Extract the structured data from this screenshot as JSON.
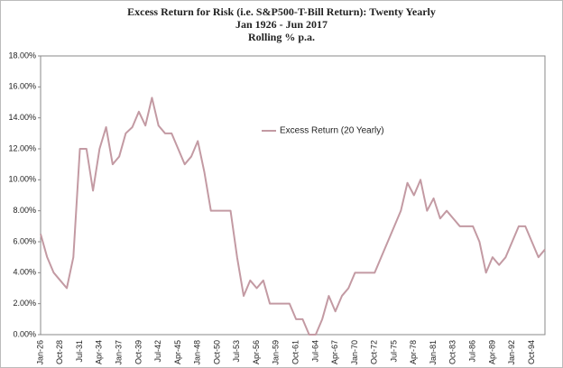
{
  "chart_data": {
    "type": "line",
    "title": [
      "Excess Return for Risk (i.e. S&P500-T-Bill Return): Twenty Yearly",
      "Jan 1926 - Jun 2017",
      "Rolling % p.a."
    ],
    "categories": [
      "Jan-26",
      null,
      null,
      "Oct-28",
      null,
      null,
      "Jul-31",
      null,
      null,
      "Apr-34",
      null,
      null,
      "Jan-37",
      null,
      null,
      "Oct-39",
      null,
      null,
      "Jul-42",
      null,
      null,
      "Apr-45",
      null,
      null,
      "Jan-48",
      null,
      null,
      "Oct-50",
      null,
      null,
      "Jul-53",
      null,
      null,
      "Apr-56",
      null,
      null,
      "Jan-59",
      null,
      null,
      "Oct-61",
      null,
      null,
      "Jul-64",
      null,
      null,
      "Apr-67",
      null,
      null,
      "Jan-70",
      null,
      null,
      "Oct-72",
      null,
      null,
      "Jul-75",
      null,
      null,
      "Apr-78",
      null,
      null,
      "Jan-81",
      null,
      null,
      "Oct-83",
      null,
      null,
      "Jul-86",
      null,
      null,
      "Apr-89",
      null,
      null,
      "Jan-92",
      null,
      null,
      "Oct-94",
      null,
      null
    ],
    "series": [
      {
        "name": "Excess Return (20 Yearly)",
        "color": "#c39aa3",
        "values": [
          6.5,
          5,
          4,
          3.5,
          3,
          5,
          12,
          12,
          9.3,
          12,
          13.4,
          11,
          11.5,
          13,
          13.4,
          14.4,
          13.5,
          15.3,
          13.5,
          13,
          13,
          12,
          11,
          11.5,
          12.5,
          10.5,
          8,
          8,
          8,
          8,
          5,
          2.5,
          3.5,
          3,
          3.5,
          2,
          2,
          2,
          2,
          1,
          1,
          0,
          0,
          1,
          2.5,
          1.5,
          2.5,
          3,
          4,
          4,
          4,
          4,
          5,
          6,
          7,
          8,
          9.8,
          9,
          10,
          8,
          8.8,
          7.5,
          8,
          7.5,
          7,
          7,
          7,
          6,
          4,
          5,
          4.5,
          5,
          6,
          7,
          7,
          6,
          5,
          5.5
        ]
      }
    ],
    "ylim": [
      0,
      18
    ],
    "yticks": [
      {
        "value": 0,
        "label": "0.00%"
      },
      {
        "value": 2,
        "label": "2.00%"
      },
      {
        "value": 4,
        "label": "4.00%"
      },
      {
        "value": 6,
        "label": "6.00%"
      },
      {
        "value": 8,
        "label": "8.00%"
      },
      {
        "value": 10,
        "label": "10.00%"
      },
      {
        "value": 12,
        "label": "12.00%"
      },
      {
        "value": 14,
        "label": "14.00%"
      },
      {
        "value": 16,
        "label": "16.00%"
      },
      {
        "value": 18,
        "label": "18.00%"
      }
    ],
    "grid": false,
    "legend": "upper center"
  }
}
